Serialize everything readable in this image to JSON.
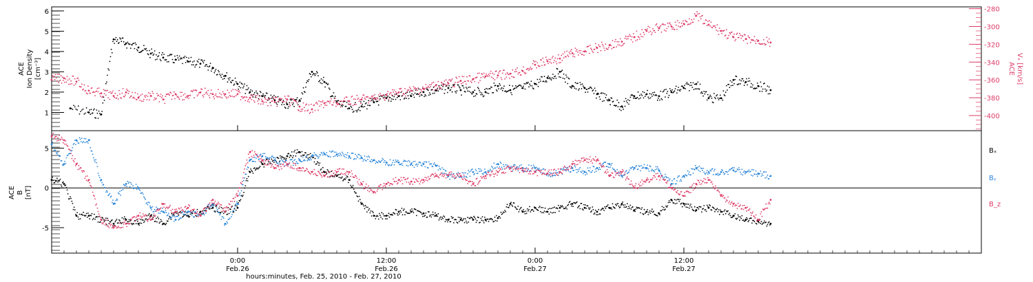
{
  "colors": {
    "black": "#000000",
    "red": "#dc3b67",
    "blue": "#2b86d8"
  },
  "x_axis": {
    "title": "hours:minutes, Feb. 25, 2010 - Feb. 27, 2010",
    "range_hours": [
      -15,
      60
    ],
    "ticks": [
      {
        "hour": 0,
        "time": "0:00",
        "date": "Feb.26"
      },
      {
        "hour": 12,
        "time": "12:00",
        "date": "Feb.26"
      },
      {
        "hour": 24,
        "time": "0:00",
        "date": "Feb.27"
      },
      {
        "hour": 36,
        "time": "12:00",
        "date": "Feb.27"
      }
    ]
  },
  "chart_data": [
    {
      "type": "scatter",
      "panel": "top",
      "left_axis": {
        "label_lines": [
          "ACE",
          "Ion Density",
          "[cm⁻³]"
        ],
        "ylim": [
          0.1,
          6.2
        ],
        "ticks": [
          "1",
          "2",
          "3",
          "4",
          "5",
          "6"
        ],
        "tick_values": [
          1,
          2,
          3,
          4,
          5,
          6
        ]
      },
      "right_axis": {
        "label_lines": [
          "ACE",
          "Vₓ [km/s]"
        ],
        "ylim": [
          -417,
          -278
        ],
        "ticks": [
          "-280",
          "-300",
          "-320",
          "-340",
          "-360",
          "-380",
          "-400"
        ],
        "tick_values": [
          -280,
          -300,
          -320,
          -340,
          -360,
          -380,
          -400
        ]
      },
      "series": [
        {
          "color": "black",
          "axis": "left",
          "x": [
            -13.5,
            -12,
            -11,
            -10,
            -9,
            -8,
            -7,
            -6,
            -5,
            -4,
            -3,
            -2,
            -1,
            0,
            1,
            2,
            3,
            4,
            5,
            6,
            7,
            8,
            9,
            10,
            11,
            12,
            13,
            14,
            15,
            16,
            17,
            18,
            19,
            20,
            21,
            22,
            23,
            24,
            25,
            26,
            27,
            28,
            29,
            30,
            31,
            32,
            33,
            34,
            35,
            36,
            37,
            38,
            39,
            40,
            41,
            42,
            43
          ],
          "y": [
            1.2,
            1.0,
            0.9,
            4.6,
            4.4,
            4.2,
            3.9,
            3.7,
            3.6,
            3.5,
            3.4,
            3.2,
            2.8,
            2.4,
            2.0,
            1.8,
            1.6,
            1.4,
            1.6,
            3.0,
            2.5,
            1.5,
            1.2,
            1.3,
            1.5,
            1.7,
            1.8,
            1.8,
            2.0,
            2.1,
            2.2,
            2.1,
            2.0,
            2.0,
            2.3,
            2.1,
            2.2,
            2.4,
            2.7,
            3.0,
            2.3,
            2.2,
            1.9,
            1.6,
            1.3,
            1.8,
            1.9,
            1.8,
            2.0,
            2.2,
            2.4,
            1.7,
            1.7,
            2.6,
            2.5,
            2.3,
            2.1
          ]
        },
        {
          "color": "red",
          "axis": "right",
          "x": [
            -15,
            -14,
            -13,
            -12,
            -11,
            -10,
            -9,
            -8,
            -7,
            -6,
            -5,
            -4,
            -3,
            -2,
            -1,
            0,
            1,
            2,
            3,
            4,
            5,
            6,
            7,
            8,
            9,
            10,
            11,
            12,
            13,
            14,
            15,
            16,
            17,
            18,
            19,
            20,
            21,
            22,
            23,
            24,
            25,
            26,
            27,
            28,
            29,
            30,
            31,
            32,
            33,
            34,
            35,
            36,
            37,
            38,
            39,
            40,
            41,
            42,
            43
          ],
          "y": [
            -360,
            -358,
            -362,
            -372,
            -375,
            -378,
            -374,
            -380,
            -378,
            -382,
            -376,
            -378,
            -374,
            -376,
            -376,
            -376,
            -380,
            -384,
            -385,
            -382,
            -390,
            -393,
            -386,
            -386,
            -384,
            -382,
            -381,
            -377,
            -374,
            -372,
            -370,
            -366,
            -364,
            -361,
            -359,
            -356,
            -355,
            -353,
            -350,
            -343,
            -339,
            -336,
            -330,
            -328,
            -324,
            -321,
            -317,
            -312,
            -305,
            -302,
            -300,
            -297,
            -288,
            -298,
            -305,
            -312,
            -314,
            -316,
            -318
          ]
        }
      ]
    },
    {
      "type": "scatter",
      "panel": "bottom",
      "left_axis": {
        "label_lines": [
          "ACE",
          "B",
          "[nT]"
        ],
        "ylim": [
          -8.2,
          7.2
        ],
        "ticks": [
          "5",
          "0",
          "-5"
        ],
        "tick_values": [
          5,
          0,
          -5
        ]
      },
      "legend": [
        "Bₓ",
        "Bᵧ",
        "B_z"
      ],
      "legend_colors": [
        "black",
        "blue",
        "red"
      ],
      "series": [
        {
          "name": "Bₓ",
          "color": "black",
          "x": [
            -15,
            -14,
            -13,
            -12,
            -11,
            -10,
            -9,
            -8,
            -7,
            -6,
            -5,
            -4,
            -3,
            -2,
            -1,
            0,
            1,
            2,
            3,
            4,
            5,
            6,
            7,
            8,
            9,
            10,
            11,
            12,
            13,
            14,
            15,
            16,
            17,
            18,
            19,
            20,
            21,
            22,
            23,
            24,
            25,
            26,
            27,
            28,
            29,
            30,
            31,
            32,
            33,
            34,
            35,
            36,
            37,
            38,
            39,
            40,
            41,
            42,
            43
          ],
          "y": [
            1.0,
            0.5,
            -3.5,
            -3.5,
            -4.0,
            -4.5,
            -4.0,
            -4.5,
            -3.5,
            -4.5,
            -3.0,
            -3.5,
            -3.0,
            -2.5,
            -3.0,
            -2.5,
            2.0,
            3.0,
            3.5,
            4.0,
            4.5,
            4.0,
            2.0,
            1.5,
            1.0,
            -2.0,
            -3.5,
            -3.5,
            -3.0,
            -3.0,
            -3.2,
            -3.5,
            -4.0,
            -4.0,
            -4.0,
            -4.0,
            -3.8,
            -2.0,
            -3.0,
            -2.5,
            -3.0,
            -2.5,
            -2.0,
            -2.5,
            -3.0,
            -2.5,
            -2.0,
            -2.8,
            -3.0,
            -3.2,
            -1.5,
            -2.0,
            -2.8,
            -2.5,
            -3.0,
            -3.5,
            -4.0,
            -4.2,
            -4.5
          ]
        },
        {
          "name": "Bᵧ",
          "color": "blue",
          "x": [
            -15,
            -14,
            -13,
            -12,
            -11,
            -10,
            -9,
            -8,
            -7,
            -6,
            -5,
            -4,
            -3,
            -2,
            -1,
            0,
            1,
            2,
            3,
            4,
            5,
            6,
            7,
            8,
            9,
            10,
            11,
            12,
            13,
            14,
            15,
            16,
            17,
            18,
            19,
            20,
            21,
            22,
            23,
            24,
            25,
            26,
            27,
            28,
            29,
            30,
            31,
            32,
            33,
            34,
            35,
            36,
            37,
            38,
            39,
            40,
            41,
            42,
            43
          ],
          "y": [
            5.5,
            3.0,
            6.0,
            6.0,
            1.0,
            -2.0,
            0.5,
            0.0,
            -2.5,
            -3.0,
            -4.0,
            -3.0,
            -3.5,
            -2.0,
            -4.5,
            -2.0,
            3.5,
            4.0,
            3.5,
            3.0,
            3.5,
            4.0,
            4.3,
            4.2,
            4.0,
            3.8,
            3.5,
            3.2,
            3.2,
            3.0,
            3.0,
            2.8,
            1.5,
            1.5,
            2.0,
            2.0,
            3.0,
            2.5,
            2.5,
            2.5,
            1.8,
            2.0,
            2.5,
            2.0,
            2.5,
            3.0,
            1.5,
            2.5,
            2.5,
            2.2,
            0.5,
            1.5,
            2.5,
            2.0,
            2.0,
            2.2,
            2.0,
            1.8,
            1.5
          ]
        },
        {
          "name": "B_z",
          "color": "red",
          "x": [
            -15,
            -14,
            -13,
            -12,
            -11,
            -10,
            -9,
            -8,
            -7,
            -6,
            -5,
            -4,
            -3,
            -2,
            -1,
            0,
            1,
            2,
            3,
            4,
            5,
            6,
            7,
            8,
            9,
            10,
            11,
            12,
            13,
            14,
            15,
            16,
            17,
            18,
            19,
            20,
            21,
            22,
            23,
            24,
            25,
            26,
            27,
            28,
            29,
            30,
            31,
            32,
            33,
            34,
            35,
            36,
            37,
            38,
            39,
            40,
            41,
            42,
            43
          ],
          "y": [
            6.5,
            6.0,
            3.0,
            1.0,
            -4.0,
            -5.0,
            -4.5,
            -3.5,
            -4.0,
            -2.0,
            -3.0,
            -2.5,
            -3.5,
            -1.5,
            -3.0,
            -1.0,
            4.5,
            3.5,
            2.5,
            3.0,
            2.5,
            2.0,
            1.5,
            2.0,
            2.0,
            0.5,
            -0.5,
            0.5,
            1.0,
            0.8,
            1.0,
            1.5,
            1.6,
            1.5,
            0.5,
            1.5,
            2.0,
            2.5,
            2.2,
            2.0,
            1.8,
            2.0,
            3.0,
            3.5,
            3.5,
            1.5,
            2.0,
            0.0,
            1.0,
            1.5,
            0.0,
            -1.0,
            0.5,
            1.0,
            -1.0,
            -2.0,
            -2.5,
            -4.0,
            -1.5
          ]
        }
      ]
    }
  ]
}
